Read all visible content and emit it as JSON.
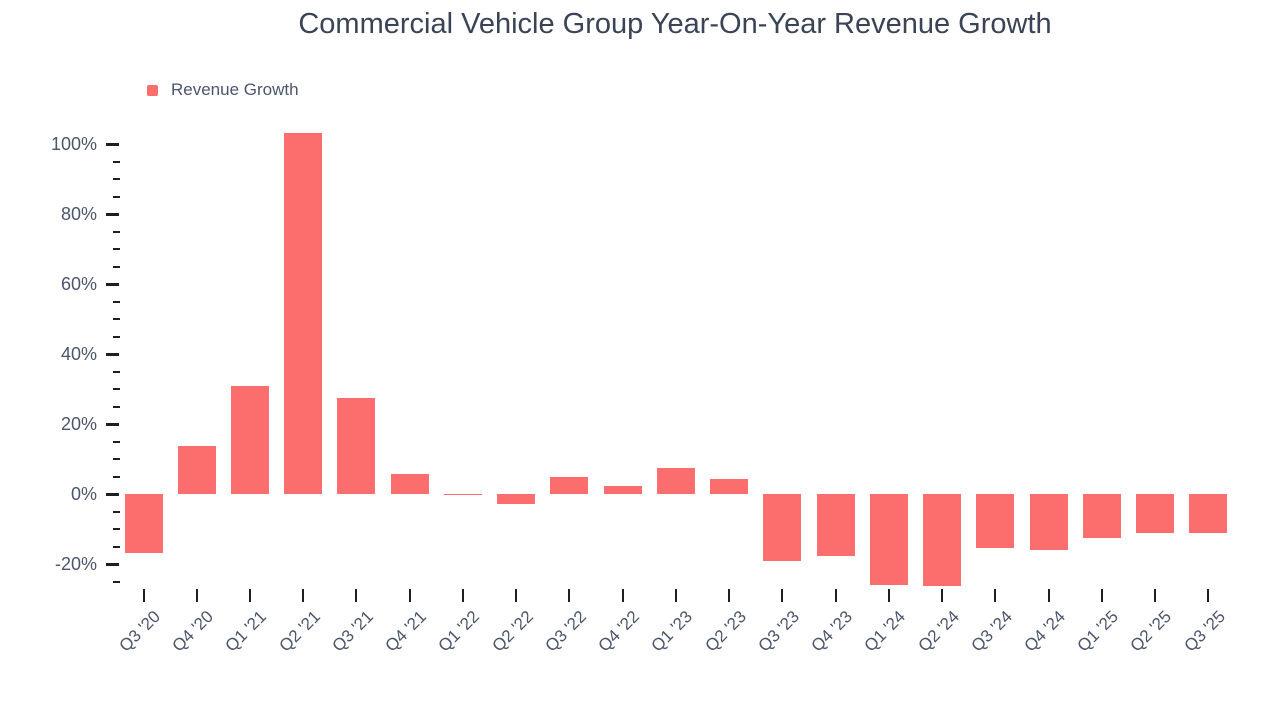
{
  "chart_data": {
    "type": "bar",
    "title": "Commercial Vehicle Group Year-On-Year Revenue Growth",
    "xlabel": "",
    "ylabel": "",
    "categories": [
      "Q3 '20",
      "Q4 '20",
      "Q1 '21",
      "Q2 '21",
      "Q3 '21",
      "Q4 '21",
      "Q1 '22",
      "Q2 '22",
      "Q3 '22",
      "Q4 '22",
      "Q1 '23",
      "Q2 '23",
      "Q3 '23",
      "Q4 '23",
      "Q1 '24",
      "Q2 '24",
      "Q3 '24",
      "Q4 '24",
      "Q1 '25",
      "Q2 '25",
      "Q3 '25"
    ],
    "series": [
      {
        "name": "Revenue Growth",
        "values": [
          -16.8,
          13.7,
          31.0,
          103.2,
          27.3,
          5.7,
          -0.4,
          -2.9,
          4.8,
          2.3,
          7.5,
          4.3,
          -19.1,
          -17.6,
          -26.0,
          -26.3,
          -15.5,
          -16.0,
          -12.7,
          -11.2,
          -11.2
        ]
      }
    ],
    "y_axis": {
      "tick_labels": [
        "100%",
        "80%",
        "60%",
        "40%",
        "20%",
        "0%",
        "-20%"
      ],
      "major_tick_values": [
        100,
        80,
        60,
        40,
        20,
        0,
        -20
      ],
      "minor_tick_step": 5,
      "ylim": [
        -27.5,
        105
      ],
      "unit": "%"
    },
    "grid": false,
    "legend_position": "top-left"
  },
  "colors": {
    "bar": "#fc6d6d",
    "title_text": "#3a4456",
    "axis_text": "#4c566b",
    "tick": "#1f1f1f",
    "background": "#ffffff"
  }
}
